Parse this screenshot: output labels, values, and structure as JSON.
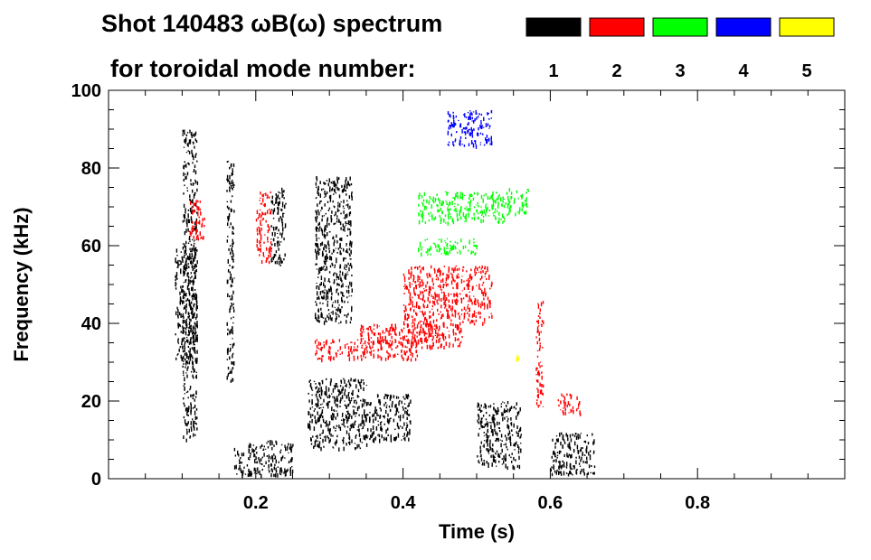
{
  "title_line1": "Shot 140483 ωB(ω) spectrum",
  "title_line2": "for toroidal mode number:",
  "chart_data": {
    "type": "heatmap",
    "xlabel": "Time (s)",
    "ylabel": "Frequency (kHz)",
    "xlim": [
      0.0,
      1.0
    ],
    "ylim": [
      0,
      100
    ],
    "x_ticks": [
      "0.2",
      "0.4",
      "0.6",
      "0.8"
    ],
    "x_tick_values": [
      0.2,
      0.4,
      0.6,
      0.8
    ],
    "y_ticks": [
      "0",
      "20",
      "40",
      "60",
      "80",
      "100"
    ],
    "y_tick_values": [
      0,
      20,
      40,
      60,
      80,
      100
    ],
    "legend": [
      {
        "label": "1",
        "color": "#000000"
      },
      {
        "label": "2",
        "color": "#ff0000"
      },
      {
        "label": "3",
        "color": "#00ff00"
      },
      {
        "label": "4",
        "color": "#0000ff"
      },
      {
        "label": "5",
        "color": "#ffff00"
      }
    ],
    "series": [
      {
        "mode": "1",
        "color": "#000000",
        "features": [
          {
            "t": [
              0.09,
              0.12
            ],
            "f": [
              30,
              60
            ]
          },
          {
            "t": [
              0.1,
              0.12
            ],
            "f": [
              10,
              90
            ]
          },
          {
            "t": [
              0.16,
              0.17
            ],
            "f": [
              25,
              82
            ]
          },
          {
            "t": [
              0.17,
              0.25
            ],
            "f": [
              1,
              10
            ]
          },
          {
            "t": [
              0.22,
              0.24
            ],
            "f": [
              55,
              75
            ]
          },
          {
            "t": [
              0.27,
              0.35
            ],
            "f": [
              8,
              26
            ]
          },
          {
            "t": [
              0.28,
              0.33
            ],
            "f": [
              40,
              78
            ]
          },
          {
            "t": [
              0.35,
              0.41
            ],
            "f": [
              10,
              22
            ]
          },
          {
            "t": [
              0.5,
              0.56
            ],
            "f": [
              3,
              20
            ]
          },
          {
            "t": [
              0.6,
              0.66
            ],
            "f": [
              1,
              12
            ]
          }
        ]
      },
      {
        "mode": "2",
        "color": "#ff0000",
        "features": [
          {
            "t": [
              0.11,
              0.13
            ],
            "f": [
              62,
              72
            ]
          },
          {
            "t": [
              0.2,
              0.22
            ],
            "f": [
              56,
              74
            ]
          },
          {
            "t": [
              0.28,
              0.42
            ],
            "f": [
              31,
              36
            ]
          },
          {
            "t": [
              0.34,
              0.45
            ],
            "f": [
              35,
              40
            ]
          },
          {
            "t": [
              0.4,
              0.52
            ],
            "f": [
              40,
              55
            ]
          },
          {
            "t": [
              0.41,
              0.48
            ],
            "f": [
              34,
              40
            ]
          },
          {
            "t": [
              0.58,
              0.59
            ],
            "f": [
              18,
              46
            ]
          },
          {
            "t": [
              0.61,
              0.64
            ],
            "f": [
              17,
              22
            ]
          }
        ]
      },
      {
        "mode": "3",
        "color": "#00ff00",
        "features": [
          {
            "t": [
              0.42,
              0.54
            ],
            "f": [
              66,
              74
            ]
          },
          {
            "t": [
              0.54,
              0.57
            ],
            "f": [
              68,
              75
            ]
          },
          {
            "t": [
              0.42,
              0.5
            ],
            "f": [
              58,
              62
            ]
          }
        ]
      },
      {
        "mode": "4",
        "color": "#0000ff",
        "features": [
          {
            "t": [
              0.46,
              0.52
            ],
            "f": [
              86,
              95
            ]
          }
        ]
      },
      {
        "mode": "5",
        "color": "#ffff00",
        "features": [
          {
            "t": [
              0.553,
              0.556
            ],
            "f": [
              31,
              32
            ]
          }
        ]
      }
    ]
  }
}
